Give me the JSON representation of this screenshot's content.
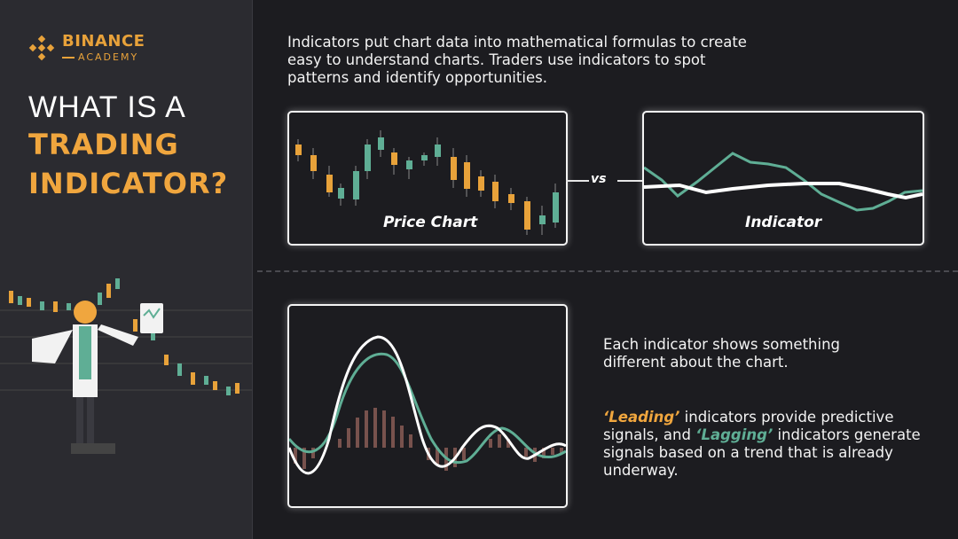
{
  "brand": {
    "name": "BINANCE",
    "sub": "ACADEMY",
    "color": "#e8a23a"
  },
  "title": {
    "line1": "WHAT IS A",
    "line2": "TRADING",
    "line3": "INDICATOR?"
  },
  "intro": "Indicators put chart data into mathematical formulas to create easy to understand charts. Traders use indicators to spot patterns and identify opportunities.",
  "panels": {
    "price_label": "Price Chart",
    "vs_label": "vs",
    "indicator_label": "Indicator"
  },
  "body": {
    "p1": "Each indicator shows something different about the chart.",
    "p2_leading": "‘Leading’",
    "p2_part1": " indicators provide predictive signals, and ",
    "p2_lagging": "‘Lagging’",
    "p2_part2": " indicators generate signals based on a trend that is already underway."
  },
  "colors": {
    "orange": "#f0a63e",
    "green": "#5fae95",
    "bg": "#1c1c20",
    "sidebar": "#2b2b30"
  },
  "icons": [
    "binance-logo-icon",
    "scientist-illustration",
    "candlestick-chart-icon"
  ]
}
